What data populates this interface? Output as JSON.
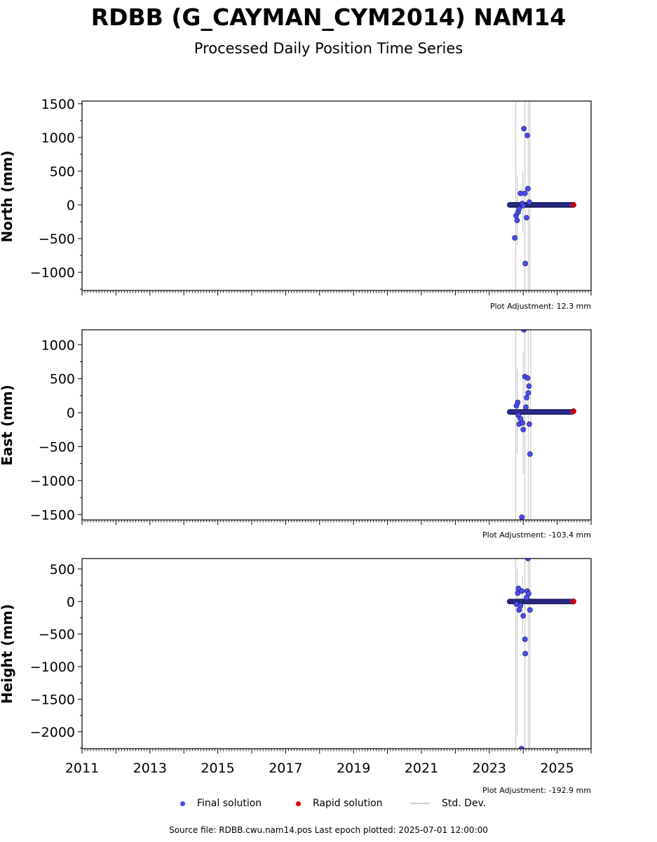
{
  "title": "RDBB (G_CAYMAN_CYM2014) NAM14",
  "subtitle": "Processed Daily Position Time Series",
  "legend": {
    "final_label": "Final solution",
    "rapid_label": "Rapid solution",
    "std_label": "Std. Dev.",
    "final_color": "#4b4bf0",
    "rapid_color": "#e00000",
    "std_color": "#cccccc"
  },
  "footer": "Source file: RDBB.cwu.nam14.pos  Last epoch plotted: 2025-07-01 12:00:00",
  "chart_data": [
    {
      "type": "scatter",
      "ylabel": "North (mm)",
      "adjustment": "Plot Adjustment: 12.3 mm",
      "xlim": [
        2011,
        2026
      ],
      "ylim": [
        -1270,
        1540
      ],
      "yticks": [
        1500,
        1000,
        500,
        0,
        -500,
        -1000
      ],
      "ytick_labels": [
        "1500",
        "1000",
        "500",
        "0",
        "−500",
        "−1000"
      ],
      "outliers": [
        [
          2023.75,
          -490
        ],
        [
          2023.79,
          -160
        ],
        [
          2023.82,
          -230
        ],
        [
          2023.85,
          -110
        ],
        [
          2023.88,
          -60
        ],
        [
          2023.92,
          170
        ],
        [
          2024.02,
          1130
        ],
        [
          2024.05,
          170
        ],
        [
          2024.1,
          -190
        ],
        [
          2024.12,
          1030
        ],
        [
          2024.14,
          240
        ],
        [
          2024.18,
          40
        ],
        [
          2024.06,
          -870
        ],
        [
          2023.97,
          20
        ],
        [
          2024.0,
          -10
        ]
      ],
      "std_lines": [
        [
          2023.78,
          1540,
          -1270
        ],
        [
          2023.83,
          440,
          -600
        ],
        [
          2023.99,
          500,
          -420
        ],
        [
          2024.05,
          1540,
          -1270
        ],
        [
          2024.15,
          1540,
          -1270
        ],
        [
          2024.2,
          1540,
          -1270
        ]
      ],
      "final_series": {
        "x_start": 2023.6,
        "x_end": 2025.45,
        "y": 0
      },
      "rapid_solution": [
        [
          2025.48,
          0
        ]
      ]
    },
    {
      "type": "scatter",
      "ylabel": "East (mm)",
      "adjustment": "Plot Adjustment: -103.4 mm",
      "xlim": [
        2011,
        2026
      ],
      "ylim": [
        -1580,
        1220
      ],
      "yticks": [
        1000,
        500,
        0,
        -500,
        -1000,
        -1500
      ],
      "ytick_labels": [
        "1000",
        "500",
        "0",
        "−500",
        "−1000",
        "−1500"
      ],
      "outliers": [
        [
          2023.8,
          100
        ],
        [
          2023.84,
          150
        ],
        [
          2023.86,
          -40
        ],
        [
          2023.88,
          -170
        ],
        [
          2023.92,
          -90
        ],
        [
          2023.98,
          -150
        ],
        [
          2024.0,
          -250
        ],
        [
          2024.02,
          1220
        ],
        [
          2024.05,
          530
        ],
        [
          2024.1,
          220
        ],
        [
          2024.13,
          510
        ],
        [
          2024.15,
          290
        ],
        [
          2024.17,
          390
        ],
        [
          2024.18,
          -170
        ],
        [
          2024.2,
          -610
        ],
        [
          2023.96,
          -1540
        ],
        [
          2024.08,
          80
        ]
      ],
      "std_lines": [
        [
          2023.78,
          1220,
          -1580
        ],
        [
          2023.83,
          640,
          -600
        ],
        [
          2024.0,
          900,
          -900
        ],
        [
          2024.05,
          1220,
          -1580
        ],
        [
          2024.15,
          1220,
          -1580
        ],
        [
          2024.22,
          1220,
          -1580
        ]
      ],
      "final_series": {
        "x_start": 2023.6,
        "x_end": 2025.45,
        "y": 10
      },
      "rapid_solution": [
        [
          2025.48,
          20
        ]
      ]
    },
    {
      "type": "scatter",
      "ylabel": "Height (mm)",
      "adjustment": "Plot Adjustment: -192.9 mm",
      "xlim": [
        2011,
        2026
      ],
      "ylim": [
        -2260,
        660
      ],
      "yticks": [
        500,
        0,
        -500,
        -1000,
        -1500,
        -2000
      ],
      "ytick_labels": [
        "500",
        "0",
        "−500",
        "−1000",
        "−1500",
        "−2000"
      ],
      "outliers": [
        [
          2023.8,
          -40
        ],
        [
          2023.84,
          130
        ],
        [
          2023.86,
          200
        ],
        [
          2023.88,
          -130
        ],
        [
          2023.92,
          -60
        ],
        [
          2023.96,
          160
        ],
        [
          2024.0,
          -220
        ],
        [
          2024.05,
          -580
        ],
        [
          2024.06,
          -800
        ],
        [
          2024.12,
          160
        ],
        [
          2024.14,
          660
        ],
        [
          2024.16,
          120
        ],
        [
          2024.2,
          -130
        ],
        [
          2023.95,
          -2260
        ],
        [
          2024.1,
          60
        ]
      ],
      "std_lines": [
        [
          2023.78,
          660,
          -2260
        ],
        [
          2023.83,
          500,
          -2050
        ],
        [
          2023.98,
          400,
          -500
        ],
        [
          2024.05,
          660,
          -2260
        ],
        [
          2024.15,
          660,
          -2260
        ],
        [
          2024.2,
          660,
          -2260
        ]
      ],
      "final_series": {
        "x_start": 2023.6,
        "x_end": 2025.45,
        "y": 0
      },
      "rapid_solution": [
        [
          2025.48,
          0
        ]
      ]
    }
  ],
  "xtick_labels": [
    "2011",
    "2013",
    "2015",
    "2017",
    "2019",
    "2021",
    "2023",
    "2025"
  ]
}
